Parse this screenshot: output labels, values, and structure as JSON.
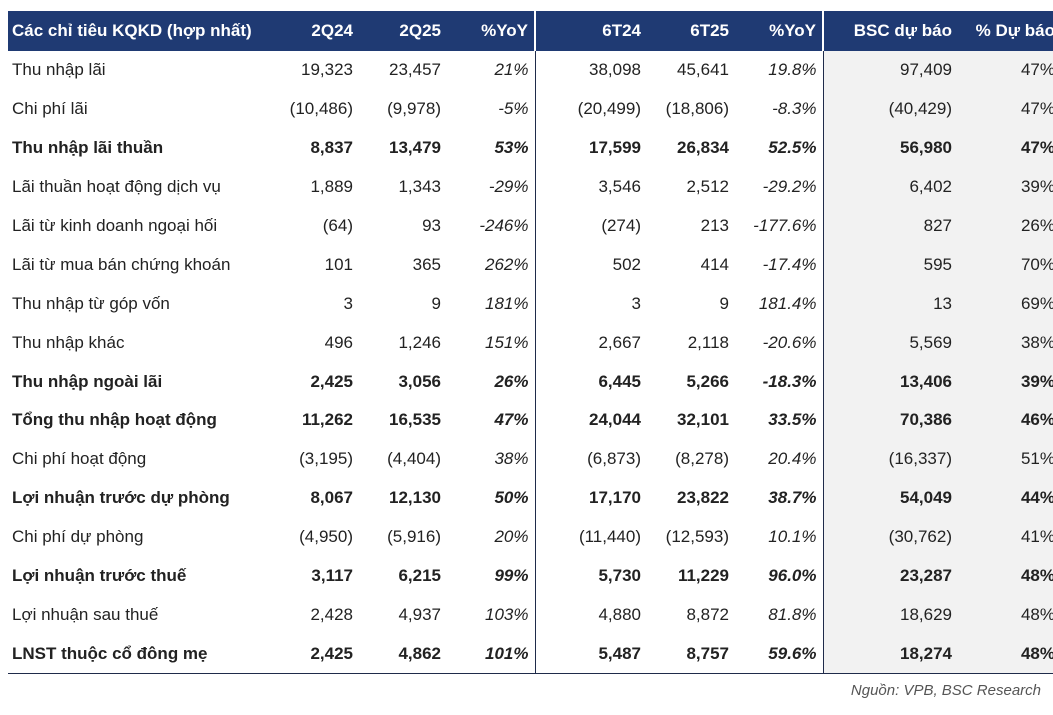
{
  "table": {
    "headers": [
      "Các chỉ tiêu KQKD (hợp nhất)",
      "2Q24",
      "2Q25",
      "%YoY",
      "6T24",
      "6T25",
      "%YoY",
      "BSC dự báo",
      "% Dự báo"
    ],
    "rows": [
      {
        "bold": false,
        "cells": [
          "Thu nhập lãi",
          "19,323",
          "23,457",
          "21%",
          "38,098",
          "45,641",
          "19.8%",
          "97,409",
          "47%"
        ]
      },
      {
        "bold": false,
        "cells": [
          "Chi phí lãi",
          "(10,486)",
          "(9,978)",
          "-5%",
          "(20,499)",
          "(18,806)",
          "-8.3%",
          "(40,429)",
          "47%"
        ]
      },
      {
        "bold": true,
        "cells": [
          "Thu nhập lãi thuần",
          "8,837",
          "13,479",
          "53%",
          "17,599",
          "26,834",
          "52.5%",
          "56,980",
          "47%"
        ]
      },
      {
        "bold": false,
        "cells": [
          "Lãi thuần hoạt động dịch vụ",
          "1,889",
          "1,343",
          "-29%",
          "3,546",
          "2,512",
          "-29.2%",
          "6,402",
          "39%"
        ]
      },
      {
        "bold": false,
        "cells": [
          "Lãi từ kinh doanh ngoại hối",
          "(64)",
          "93",
          "-246%",
          "(274)",
          "213",
          "-177.6%",
          "827",
          "26%"
        ]
      },
      {
        "bold": false,
        "cells": [
          "Lãi từ mua bán chứng khoán",
          "101",
          "365",
          "262%",
          "502",
          "414",
          "-17.4%",
          "595",
          "70%"
        ]
      },
      {
        "bold": false,
        "cells": [
          "Thu nhập từ góp vốn",
          "3",
          "9",
          "181%",
          "3",
          "9",
          "181.4%",
          "13",
          "69%"
        ]
      },
      {
        "bold": false,
        "cells": [
          "Thu nhập khác",
          "496",
          "1,246",
          "151%",
          "2,667",
          "2,118",
          "-20.6%",
          "5,569",
          "38%"
        ]
      },
      {
        "bold": true,
        "cells": [
          "Thu nhập ngoài lãi",
          "2,425",
          "3,056",
          "26%",
          "6,445",
          "5,266",
          "-18.3%",
          "13,406",
          "39%"
        ]
      },
      {
        "bold": true,
        "cells": [
          "Tổng thu nhập hoạt động",
          "11,262",
          "16,535",
          "47%",
          "24,044",
          "32,101",
          "33.5%",
          "70,386",
          "46%"
        ]
      },
      {
        "bold": false,
        "cells": [
          "Chi phí hoạt động",
          "(3,195)",
          "(4,404)",
          "38%",
          "(6,873)",
          "(8,278)",
          "20.4%",
          "(16,337)",
          "51%"
        ]
      },
      {
        "bold": true,
        "cells": [
          "Lợi nhuận trước dự phòng",
          "8,067",
          "12,130",
          "50%",
          "17,170",
          "23,822",
          "38.7%",
          "54,049",
          "44%"
        ]
      },
      {
        "bold": false,
        "cells": [
          "Chi phí dự phòng",
          "(4,950)",
          "(5,916)",
          "20%",
          "(11,440)",
          "(12,593)",
          "10.1%",
          "(30,762)",
          "41%"
        ]
      },
      {
        "bold": true,
        "cells": [
          "Lợi nhuận trước thuế",
          "3,117",
          "6,215",
          "99%",
          "5,730",
          "11,229",
          "96.0%",
          "23,287",
          "48%"
        ]
      },
      {
        "bold": false,
        "cells": [
          "Lợi nhuận sau thuế",
          "2,428",
          "4,937",
          "103%",
          "4,880",
          "8,872",
          "81.8%",
          "18,629",
          "48%"
        ]
      },
      {
        "bold": true,
        "cells": [
          "LNST thuộc cổ đông mẹ",
          "2,425",
          "4,862",
          "101%",
          "5,487",
          "8,757",
          "59.6%",
          "18,274",
          "48%"
        ]
      }
    ]
  },
  "source": "Nguồn: VPB, BSC Research",
  "colors": {
    "header_bg": "#1f3a73",
    "header_text": "#ffffff",
    "shade": "#f2f2f2",
    "rule": "#1f2b4a"
  }
}
